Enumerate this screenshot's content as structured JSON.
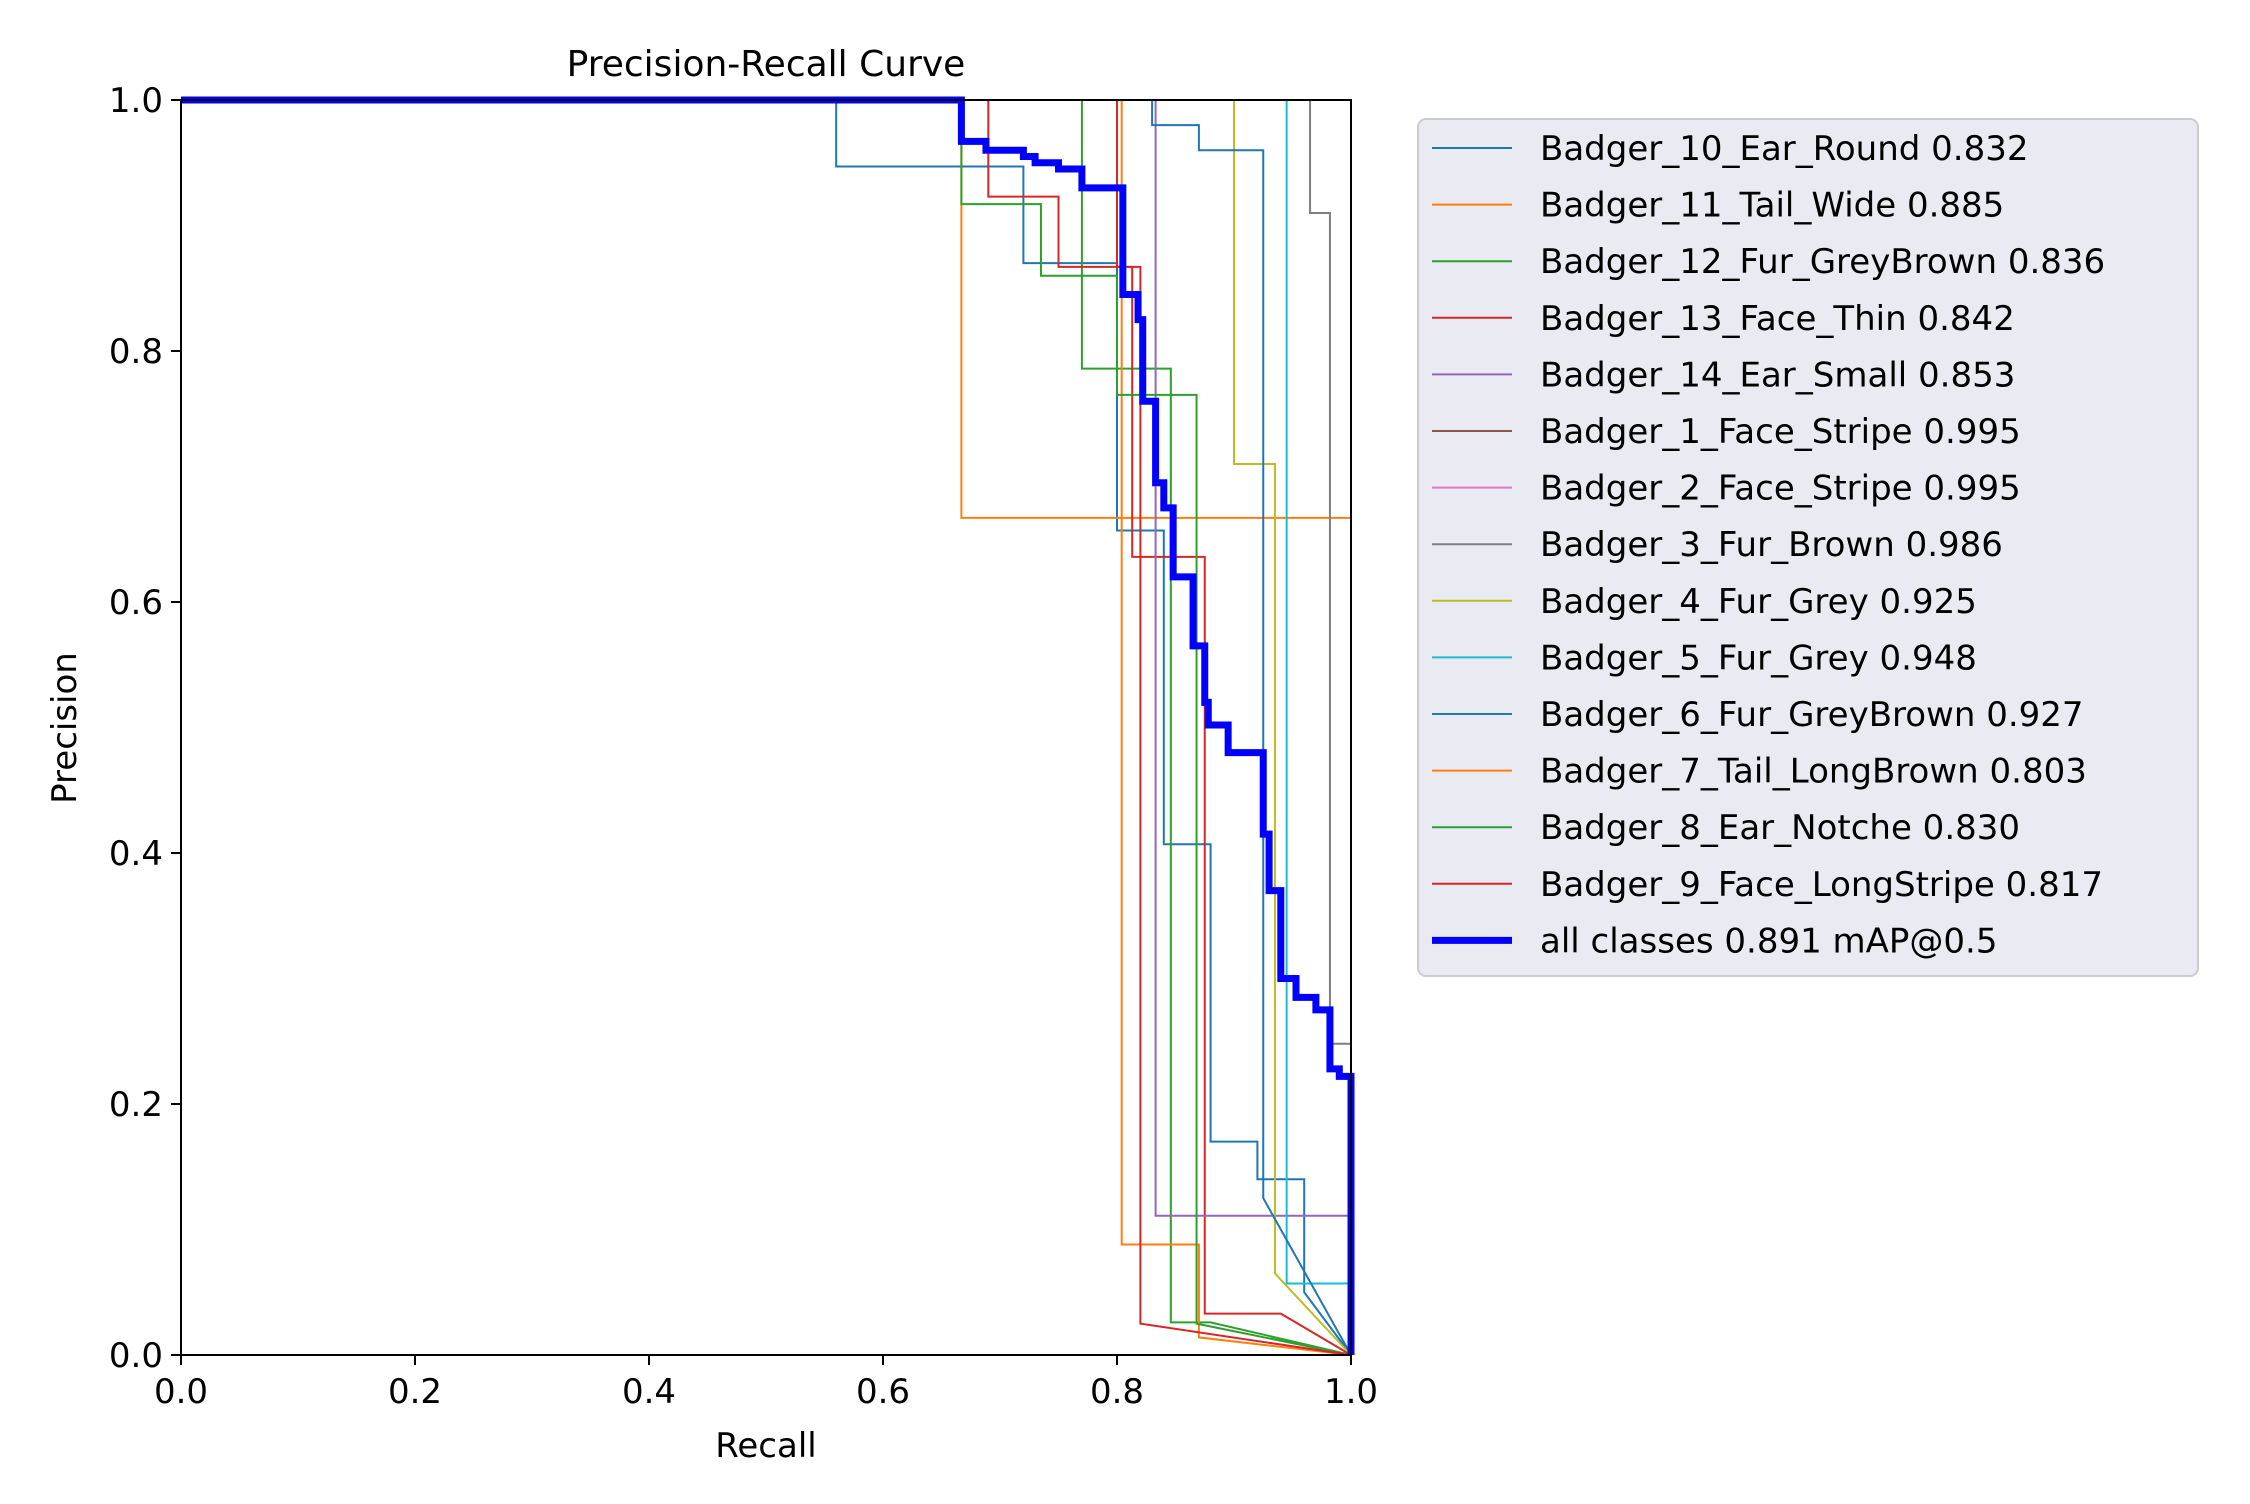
{
  "chart_data": {
    "type": "line",
    "title": "Precision-Recall Curve",
    "xlabel": "Recall",
    "ylabel": "Precision",
    "xlim": [
      0,
      1
    ],
    "ylim": [
      0,
      1
    ],
    "xticks": [
      "0.0",
      "0.2",
      "0.4",
      "0.6",
      "0.8",
      "1.0"
    ],
    "yticks": [
      "0.0",
      "0.2",
      "0.4",
      "0.6",
      "0.8",
      "1.0"
    ],
    "grid": false,
    "legend_position": "outside-right",
    "series": [
      {
        "name": "Badger_10_Ear_Round 0.832",
        "color": "#1f77b4",
        "points": [
          [
            0,
            1
          ],
          [
            0.56,
            1
          ],
          [
            0.56,
            0.947
          ],
          [
            0.72,
            0.947
          ],
          [
            0.72,
            0.87
          ],
          [
            0.8,
            0.87
          ],
          [
            0.8,
            0.657
          ],
          [
            0.84,
            0.657
          ],
          [
            0.84,
            0.407
          ],
          [
            0.88,
            0.407
          ],
          [
            0.88,
            0.17
          ],
          [
            0.92,
            0.17
          ],
          [
            0.92,
            0.14
          ],
          [
            0.96,
            0.14
          ],
          [
            0.96,
            0.05
          ],
          [
            1,
            0
          ]
        ]
      },
      {
        "name": "Badger_11_Tail_Wide 0.885",
        "color": "#ff7f0e",
        "points": [
          [
            0,
            1
          ],
          [
            0.667,
            1
          ],
          [
            0.667,
            0.667
          ],
          [
            1,
            0.667
          ],
          [
            1,
            0
          ]
        ]
      },
      {
        "name": "Badger_12_Fur_GreyBrown 0.836",
        "color": "#2ca02c",
        "points": [
          [
            0,
            1
          ],
          [
            0.77,
            1
          ],
          [
            0.77,
            0.786
          ],
          [
            0.846,
            0.786
          ],
          [
            0.846,
            0.026
          ],
          [
            0.88,
            0.026
          ],
          [
            1,
            0
          ]
        ]
      },
      {
        "name": "Badger_13_Face_Thin 0.842",
        "color": "#d62728",
        "points": [
          [
            0,
            1
          ],
          [
            0.69,
            1
          ],
          [
            0.69,
            0.923
          ],
          [
            0.75,
            0.923
          ],
          [
            0.75,
            0.867
          ],
          [
            0.813,
            0.867
          ],
          [
            0.813,
            0.636
          ],
          [
            0.875,
            0.636
          ],
          [
            0.875,
            0.033
          ],
          [
            0.94,
            0.033
          ],
          [
            1,
            0
          ]
        ]
      },
      {
        "name": "Badger_14_Ear_Small 0.853",
        "color": "#9467bd",
        "points": [
          [
            0,
            1
          ],
          [
            0.833,
            1
          ],
          [
            0.833,
            0.111
          ],
          [
            1,
            0.111
          ],
          [
            1,
            0
          ]
        ]
      },
      {
        "name": "Badger_1_Face_Stripe 0.995",
        "color": "#8c564b",
        "points": [
          [
            0,
            1
          ],
          [
            1,
            1
          ],
          [
            1,
            0
          ]
        ]
      },
      {
        "name": "Badger_2_Face_Stripe 0.995",
        "color": "#e377c2",
        "points": [
          [
            0,
            1
          ],
          [
            1,
            1
          ],
          [
            1,
            0
          ]
        ]
      },
      {
        "name": "Badger_3_Fur_Brown 0.986",
        "color": "#7f7f7f",
        "points": [
          [
            0,
            1
          ],
          [
            0.965,
            1
          ],
          [
            0.965,
            0.91
          ],
          [
            0.982,
            0.91
          ],
          [
            0.982,
            0.248
          ],
          [
            1,
            0.248
          ],
          [
            1,
            0
          ]
        ]
      },
      {
        "name": "Badger_4_Fur_Grey 0.925",
        "color": "#bcbd22",
        "points": [
          [
            0,
            1
          ],
          [
            0.9,
            1
          ],
          [
            0.9,
            0.71
          ],
          [
            0.935,
            0.71
          ],
          [
            0.935,
            0.065
          ],
          [
            1,
            0
          ]
        ]
      },
      {
        "name": "Badger_5_Fur_Grey 0.948",
        "color": "#17becf",
        "points": [
          [
            0,
            1
          ],
          [
            0.945,
            1
          ],
          [
            0.945,
            0.057
          ],
          [
            1,
            0.057
          ],
          [
            1,
            0
          ]
        ]
      },
      {
        "name": "Badger_6_Fur_GreyBrown 0.927",
        "color": "#1f77b4",
        "points": [
          [
            0,
            1
          ],
          [
            0.83,
            1
          ],
          [
            0.83,
            0.98
          ],
          [
            0.87,
            0.98
          ],
          [
            0.87,
            0.96
          ],
          [
            0.925,
            0.96
          ],
          [
            0.925,
            0.125
          ],
          [
            1,
            0
          ]
        ]
      },
      {
        "name": "Badger_7_Tail_LongBrown 0.803",
        "color": "#ff7f0e",
        "points": [
          [
            0,
            1
          ],
          [
            0.804,
            1
          ],
          [
            0.804,
            0.088
          ],
          [
            0.87,
            0.088
          ],
          [
            0.87,
            0.014
          ],
          [
            1,
            0
          ]
        ]
      },
      {
        "name": "Badger_8_Ear_Notche 0.830",
        "color": "#2ca02c",
        "points": [
          [
            0,
            1
          ],
          [
            0.667,
            1
          ],
          [
            0.667,
            0.917
          ],
          [
            0.735,
            0.917
          ],
          [
            0.735,
            0.86
          ],
          [
            0.8,
            0.86
          ],
          [
            0.8,
            0.765
          ],
          [
            0.868,
            0.765
          ],
          [
            0.868,
            0.025
          ],
          [
            1,
            0
          ]
        ]
      },
      {
        "name": "Badger_9_Face_LongStripe 0.817",
        "color": "#d62728",
        "points": [
          [
            0,
            1
          ],
          [
            0.8,
            1
          ],
          [
            0.8,
            0.867
          ],
          [
            0.82,
            0.867
          ],
          [
            0.82,
            0.025
          ],
          [
            1,
            0
          ]
        ]
      },
      {
        "name": "all classes 0.891 mAP@0.5",
        "color": "#0000ff",
        "bold": true,
        "points": [
          [
            0,
            1
          ],
          [
            0.667,
            1
          ],
          [
            0.667,
            0.967
          ],
          [
            0.688,
            0.967
          ],
          [
            0.688,
            0.96
          ],
          [
            0.72,
            0.96
          ],
          [
            0.72,
            0.955
          ],
          [
            0.73,
            0.955
          ],
          [
            0.73,
            0.95
          ],
          [
            0.75,
            0.95
          ],
          [
            0.75,
            0.945
          ],
          [
            0.77,
            0.945
          ],
          [
            0.77,
            0.93
          ],
          [
            0.805,
            0.93
          ],
          [
            0.805,
            0.845
          ],
          [
            0.818,
            0.845
          ],
          [
            0.818,
            0.825
          ],
          [
            0.822,
            0.825
          ],
          [
            0.822,
            0.76
          ],
          [
            0.833,
            0.76
          ],
          [
            0.833,
            0.695
          ],
          [
            0.84,
            0.695
          ],
          [
            0.84,
            0.675
          ],
          [
            0.848,
            0.675
          ],
          [
            0.848,
            0.62
          ],
          [
            0.865,
            0.62
          ],
          [
            0.865,
            0.565
          ],
          [
            0.875,
            0.565
          ],
          [
            0.875,
            0.52
          ],
          [
            0.878,
            0.52
          ],
          [
            0.878,
            0.502
          ],
          [
            0.895,
            0.502
          ],
          [
            0.895,
            0.48
          ],
          [
            0.925,
            0.48
          ],
          [
            0.925,
            0.415
          ],
          [
            0.93,
            0.415
          ],
          [
            0.93,
            0.37
          ],
          [
            0.94,
            0.37
          ],
          [
            0.94,
            0.3
          ],
          [
            0.953,
            0.3
          ],
          [
            0.953,
            0.285
          ],
          [
            0.97,
            0.285
          ],
          [
            0.97,
            0.275
          ],
          [
            0.982,
            0.275
          ],
          [
            0.982,
            0.228
          ],
          [
            0.99,
            0.228
          ],
          [
            0.99,
            0.222
          ],
          [
            1,
            0.222
          ],
          [
            1,
            0
          ]
        ]
      }
    ]
  }
}
